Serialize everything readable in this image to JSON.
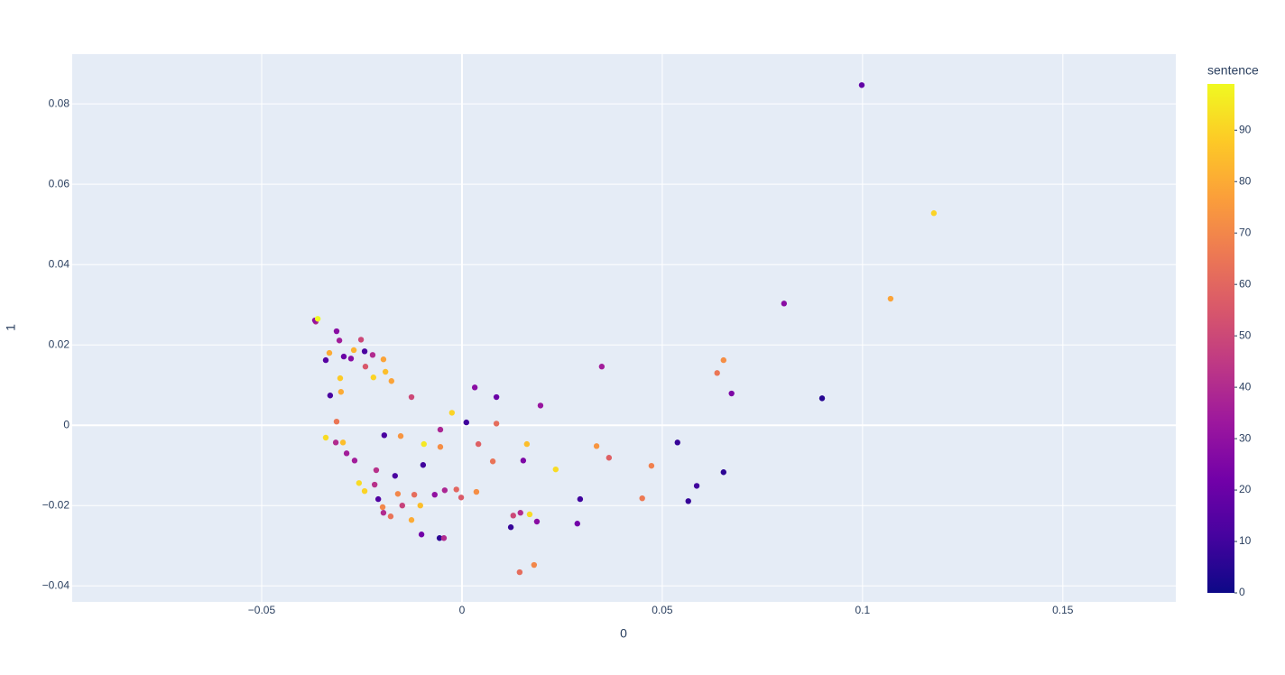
{
  "chart_data": {
    "type": "scatter",
    "x_label": "0",
    "y_label": "1",
    "colorbar_title": "sentence",
    "xlim": [
      -0.0973,
      0.1782
    ],
    "ylim": [
      -0.044,
      0.0924
    ],
    "xticks": [
      {
        "value": -0.05,
        "label": "−0.05"
      },
      0,
      0.05,
      0.1,
      0.15
    ],
    "yticks": [
      {
        "value": -0.04,
        "label": "−0.04"
      },
      {
        "value": -0.02,
        "label": "−0.02"
      },
      0,
      0.02,
      0.04,
      0.06,
      0.08
    ],
    "clim": [
      0,
      99
    ],
    "cticks": [
      0,
      10,
      20,
      30,
      40,
      50,
      60,
      70,
      80,
      90
    ],
    "colorscale": [
      "#0d0887",
      "#46039f",
      "#7201a8",
      "#9c179e",
      "#bd3786",
      "#d8576b",
      "#ed7953",
      "#fb9f3a",
      "#fdca26",
      "#f0f921"
    ],
    "grid": true,
    "x": [
      0.0998,
      0.1178,
      0.107,
      0.0804,
      0.0899,
      0.0653,
      0.0637,
      0.0673,
      0.0349,
      0.0538,
      0.0653,
      0.0586,
      0.0565,
      0.0473,
      0.045,
      0.0367,
      0.0336,
      0.0234,
      0.0295,
      0.0288,
      0.0196,
      0.0086,
      0.0032,
      0.0011,
      0.0086,
      -0.0025,
      0.0041,
      0.0077,
      0.0162,
      0.0153,
      0.0036,
      -0.0014,
      -0.0002,
      -0.0043,
      -0.0068,
      0.0122,
      0.0128,
      0.0146,
      0.0169,
      0.0187,
      0.0144,
      0.018,
      -0.0056,
      -0.0045,
      -0.0101,
      -0.0126,
      -0.0104,
      -0.0119,
      -0.0149,
      -0.016,
      -0.0167,
      -0.0097,
      -0.0095,
      -0.0054,
      -0.0054,
      -0.0153,
      -0.0194,
      -0.0126,
      -0.0176,
      -0.0191,
      -0.0196,
      -0.0221,
      -0.0223,
      -0.0241,
      -0.0243,
      -0.0252,
      -0.027,
      -0.0277,
      -0.0295,
      -0.0306,
      -0.0313,
      -0.0304,
      -0.0302,
      -0.0329,
      -0.034,
      -0.0331,
      -0.0365,
      -0.0367,
      -0.036,
      -0.0313,
      -0.034,
      -0.0315,
      -0.0297,
      -0.0288,
      -0.0268,
      -0.0214,
      -0.0218,
      -0.0257,
      -0.0243,
      -0.0209,
      -0.0198,
      -0.0196,
      -0.0178
    ],
    "y": [
      0.0847,
      0.0528,
      0.0315,
      0.0303,
      0.0067,
      0.0162,
      0.013,
      0.0079,
      0.0146,
      -0.0043,
      -0.0117,
      -0.0151,
      -0.0189,
      -0.0101,
      -0.0182,
      -0.0081,
      -0.0052,
      -0.011,
      -0.0184,
      -0.0245,
      0.0049,
      0.007,
      0.0094,
      0.0007,
      0.0004,
      0.0031,
      -0.0047,
      -0.009,
      -0.0047,
      -0.0088,
      -0.0166,
      -0.016,
      -0.018,
      -0.0162,
      -0.0173,
      -0.0254,
      -0.0225,
      -0.0218,
      -0.0222,
      -0.024,
      -0.0366,
      -0.0348,
      -0.0281,
      -0.0281,
      -0.0272,
      -0.0236,
      -0.02,
      -0.0173,
      -0.02,
      -0.0171,
      -0.0126,
      -0.0099,
      -0.0047,
      -0.0054,
      -0.0011,
      -0.0027,
      -0.0025,
      0.007,
      0.011,
      0.0133,
      0.0164,
      0.0119,
      0.0175,
      0.0146,
      0.0184,
      0.0213,
      0.0187,
      0.0166,
      0.0171,
      0.0211,
      0.0234,
      0.0117,
      0.0083,
      0.0074,
      0.0162,
      0.018,
      0.0258,
      0.0261,
      0.0265,
      0.0009,
      -0.0031,
      -0.0043,
      -0.0043,
      -0.007,
      -0.0088,
      -0.0112,
      -0.0148,
      -0.0144,
      -0.0164,
      -0.0184,
      -0.0204,
      -0.0218,
      -0.0227
    ],
    "color_values": [
      18,
      90,
      78,
      28,
      5,
      72,
      65,
      25,
      35,
      8,
      6,
      10,
      8,
      68,
      66,
      58,
      74,
      92,
      10,
      22,
      32,
      20,
      28,
      10,
      62,
      90,
      58,
      64,
      85,
      25,
      72,
      60,
      56,
      38,
      30,
      8,
      50,
      40,
      92,
      28,
      62,
      70,
      6,
      40,
      22,
      80,
      85,
      62,
      48,
      70,
      12,
      10,
      95,
      72,
      38,
      74,
      12,
      50,
      78,
      85,
      78,
      90,
      40,
      55,
      12,
      50,
      82,
      28,
      20,
      35,
      28,
      88,
      80,
      12,
      15,
      80,
      40,
      30,
      99,
      65,
      92,
      40,
      85,
      35,
      35,
      42,
      42,
      92,
      90,
      14,
      70,
      40,
      64
    ]
  }
}
